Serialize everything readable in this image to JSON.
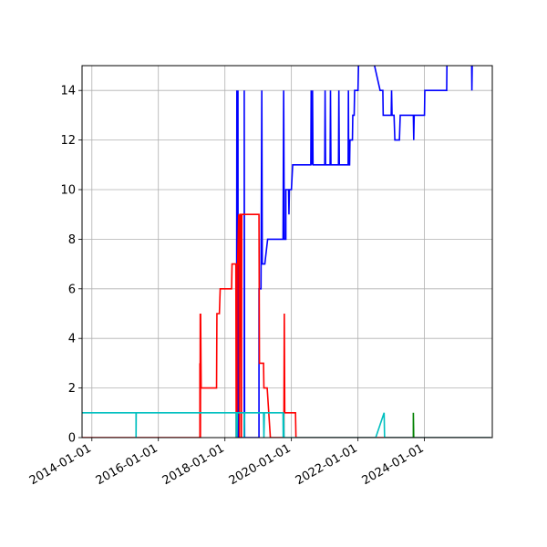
{
  "chart_data": {
    "type": "line",
    "title": "",
    "xlabel": "",
    "ylabel": "",
    "x_domain": [
      "2013-09-15",
      "2026-01-15"
    ],
    "xticks": [
      "2014-01-01",
      "2016-01-01",
      "2018-01-01",
      "2020-01-01",
      "2022-01-01",
      "2024-01-01"
    ],
    "ylim": [
      0,
      15
    ],
    "yticks": [
      0,
      2,
      4,
      6,
      8,
      10,
      12,
      14
    ],
    "ytick_labels": [
      "0",
      "2",
      "4",
      "6",
      "8",
      "10",
      "12",
      "14"
    ],
    "grid": true,
    "series": [
      {
        "color": "#0000ff",
        "points": [
          [
            "2018-05-10",
            0
          ],
          [
            "2018-05-10",
            7
          ],
          [
            "2018-05-12",
            14
          ],
          [
            "2018-05-14",
            0
          ],
          [
            "2018-05-16",
            14
          ],
          [
            "2018-05-18",
            0
          ],
          [
            "2018-05-20",
            14
          ],
          [
            "2018-05-22",
            0
          ],
          [
            "2018-05-24",
            14
          ],
          [
            "2018-05-26",
            0
          ],
          [
            "2018-06-05",
            0
          ],
          [
            "2018-08-01",
            0
          ],
          [
            "2018-08-01",
            14
          ],
          [
            "2018-08-05",
            0
          ],
          [
            "2019-01-10",
            0
          ],
          [
            "2019-01-10",
            6
          ],
          [
            "2019-02-01",
            6
          ],
          [
            "2019-02-10",
            14
          ],
          [
            "2019-02-15",
            7
          ],
          [
            "2019-03-15",
            7
          ],
          [
            "2019-04-15",
            8
          ],
          [
            "2019-10-01",
            8
          ],
          [
            "2019-10-08",
            14
          ],
          [
            "2019-10-15",
            8
          ],
          [
            "2019-11-01",
            8
          ],
          [
            "2019-11-01",
            10
          ],
          [
            "2019-12-01",
            10
          ],
          [
            "2019-12-05",
            9
          ],
          [
            "2019-12-10",
            10
          ],
          [
            "2020-01-01",
            10
          ],
          [
            "2020-01-15",
            11
          ],
          [
            "2020-08-01",
            11
          ],
          [
            "2020-08-05",
            14
          ],
          [
            "2020-08-10",
            11
          ],
          [
            "2020-08-20",
            14
          ],
          [
            "2020-08-25",
            11
          ],
          [
            "2021-01-01",
            11
          ],
          [
            "2021-01-05",
            14
          ],
          [
            "2021-01-10",
            11
          ],
          [
            "2021-03-01",
            11
          ],
          [
            "2021-03-05",
            14
          ],
          [
            "2021-03-10",
            11
          ],
          [
            "2021-06-01",
            11
          ],
          [
            "2021-06-05",
            14
          ],
          [
            "2021-06-10",
            11
          ],
          [
            "2021-09-15",
            11
          ],
          [
            "2021-09-18",
            14
          ],
          [
            "2021-09-21",
            11
          ],
          [
            "2021-10-01",
            11
          ],
          [
            "2021-10-05",
            12
          ],
          [
            "2021-11-01",
            12
          ],
          [
            "2021-11-05",
            13
          ],
          [
            "2021-11-20",
            13
          ],
          [
            "2021-11-25",
            14
          ],
          [
            "2022-01-01",
            14
          ],
          [
            "2022-01-10",
            15.5
          ],
          [
            "2022-06-01",
            15.5
          ],
          [
            "2022-09-01",
            14
          ],
          [
            "2022-10-01",
            14
          ],
          [
            "2022-10-05",
            13
          ],
          [
            "2023-01-01",
            13
          ],
          [
            "2023-01-05",
            14
          ],
          [
            "2023-01-10",
            13
          ],
          [
            "2023-02-01",
            13
          ],
          [
            "2023-02-10",
            12
          ],
          [
            "2023-04-01",
            12
          ],
          [
            "2023-04-10",
            13
          ],
          [
            "2023-09-01",
            13
          ],
          [
            "2023-09-05",
            12
          ],
          [
            "2023-09-10",
            13
          ],
          [
            "2024-01-01",
            13
          ],
          [
            "2024-01-05",
            14
          ],
          [
            "2024-09-01",
            14
          ],
          [
            "2024-09-05",
            15.5
          ],
          [
            "2025-06-01",
            15.5
          ],
          [
            "2025-06-05",
            14
          ],
          [
            "2025-06-10",
            15.5
          ]
        ]
      },
      {
        "color": "#ff0000",
        "points": [
          [
            "2013-09-15",
            0
          ],
          [
            "2017-04-01",
            0
          ],
          [
            "2017-04-01",
            3
          ],
          [
            "2017-04-03",
            0
          ],
          [
            "2017-04-05",
            5
          ],
          [
            "2017-04-07",
            0
          ],
          [
            "2017-04-09",
            5
          ],
          [
            "2017-04-15",
            2
          ],
          [
            "2017-10-01",
            2
          ],
          [
            "2017-10-05",
            5
          ],
          [
            "2017-11-01",
            5
          ],
          [
            "2017-11-10",
            6
          ],
          [
            "2018-03-15",
            6
          ],
          [
            "2018-03-20",
            7
          ],
          [
            "2018-05-01",
            7
          ],
          [
            "2018-05-05",
            0
          ],
          [
            "2018-05-08",
            7
          ],
          [
            "2018-05-12",
            0
          ],
          [
            "2018-05-15",
            7
          ],
          [
            "2018-05-20",
            7
          ],
          [
            "2018-06-01",
            9
          ],
          [
            "2018-06-10",
            0
          ],
          [
            "2018-06-15",
            9
          ],
          [
            "2018-06-25",
            9
          ],
          [
            "2018-07-01",
            0
          ],
          [
            "2018-07-05",
            9
          ],
          [
            "2019-01-10",
            9
          ],
          [
            "2019-01-15",
            3
          ],
          [
            "2019-03-01",
            3
          ],
          [
            "2019-03-05",
            2
          ],
          [
            "2019-04-10",
            2
          ],
          [
            "2019-05-15",
            0
          ],
          [
            "2019-10-10",
            0
          ],
          [
            "2019-10-15",
            5
          ],
          [
            "2019-10-20",
            1
          ],
          [
            "2020-02-15",
            1
          ],
          [
            "2020-02-20",
            0
          ],
          [
            "2025-12-31",
            0
          ]
        ]
      },
      {
        "color": "#00bfbf",
        "points": [
          [
            "2013-09-15",
            1
          ],
          [
            "2015-05-01",
            1
          ],
          [
            "2015-05-01",
            0
          ],
          [
            "2015-05-03",
            1
          ],
          [
            "2018-05-05",
            1
          ],
          [
            "2018-05-05",
            0
          ],
          [
            "2018-05-09",
            1
          ],
          [
            "2018-05-13",
            0
          ],
          [
            "2018-05-17",
            1
          ],
          [
            "2018-08-01",
            1
          ],
          [
            "2018-08-01",
            0
          ],
          [
            "2018-08-05",
            1
          ],
          [
            "2019-03-01",
            1
          ],
          [
            "2019-03-05",
            0
          ],
          [
            "2019-03-10",
            1
          ],
          [
            "2019-10-01",
            1
          ],
          [
            "2019-10-03",
            0
          ],
          [
            "2019-10-08",
            1
          ],
          [
            "2019-10-12",
            0
          ],
          [
            "2022-07-15",
            0
          ],
          [
            "2022-10-15",
            1
          ],
          [
            "2022-10-20",
            0
          ],
          [
            "2025-12-31",
            0
          ]
        ]
      },
      {
        "color": "#008000",
        "points": [
          [
            "2023-09-01",
            0
          ],
          [
            "2023-09-01",
            1
          ],
          [
            "2023-09-05",
            0
          ]
        ]
      }
    ]
  }
}
